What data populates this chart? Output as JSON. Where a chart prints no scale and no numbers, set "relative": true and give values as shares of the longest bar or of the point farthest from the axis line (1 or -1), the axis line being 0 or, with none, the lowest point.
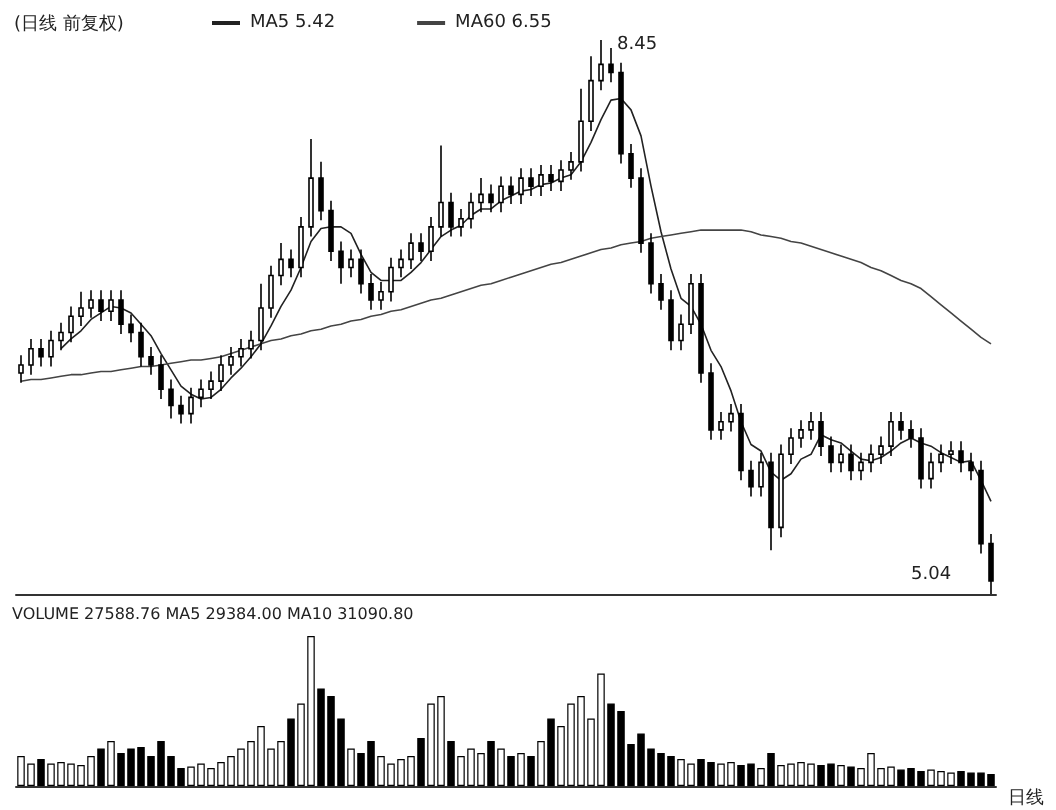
{
  "chart_data": [
    {
      "type": "candlestick",
      "title": "(日线 前复权)",
      "color": "#000000",
      "legend": "top left",
      "grid": false,
      "tick_labels": false,
      "categories": [
        null,
        null,
        null,
        null,
        null,
        null,
        null,
        null,
        null,
        null,
        null,
        null,
        null,
        null,
        null,
        null,
        null,
        null,
        null,
        null,
        null,
        null,
        null,
        null,
        null,
        null,
        null,
        null,
        null,
        null,
        null,
        null,
        null,
        null,
        null,
        null,
        null,
        null,
        null,
        null,
        null,
        null,
        null,
        null,
        null,
        null,
        null,
        null,
        null,
        null,
        null,
        null,
        null,
        null,
        null,
        null,
        null,
        null,
        null,
        null,
        null,
        null,
        null,
        null,
        null,
        null,
        null,
        null,
        null,
        null,
        null,
        null,
        null,
        null,
        null,
        null,
        null,
        null,
        null,
        null,
        null,
        null,
        null,
        null,
        null,
        null,
        null,
        null,
        null,
        null,
        null,
        null,
        null,
        null,
        null,
        null,
        null,
        null
      ],
      "ohlc": [
        [
          6.4,
          6.51,
          6.34,
          6.45
        ],
        [
          6.45,
          6.61,
          6.39,
          6.55
        ],
        [
          6.55,
          6.61,
          6.44,
          6.5
        ],
        [
          6.5,
          6.66,
          6.44,
          6.6
        ],
        [
          6.6,
          6.71,
          6.54,
          6.65
        ],
        [
          6.65,
          6.81,
          6.59,
          6.75
        ],
        [
          6.75,
          6.9,
          6.69,
          6.8
        ],
        [
          6.8,
          6.91,
          6.74,
          6.85
        ],
        [
          6.85,
          6.91,
          6.72,
          6.78
        ],
        [
          6.78,
          6.91,
          6.72,
          6.85
        ],
        [
          6.85,
          6.91,
          6.64,
          6.7
        ],
        [
          6.7,
          6.76,
          6.59,
          6.65
        ],
        [
          6.65,
          6.71,
          6.44,
          6.5
        ],
        [
          6.5,
          6.56,
          6.39,
          6.45
        ],
        [
          6.45,
          6.51,
          6.24,
          6.3
        ],
        [
          6.3,
          6.36,
          6.12,
          6.2
        ],
        [
          6.2,
          6.26,
          6.09,
          6.15
        ],
        [
          6.15,
          6.31,
          6.09,
          6.25
        ],
        [
          6.25,
          6.36,
          6.19,
          6.3
        ],
        [
          6.3,
          6.41,
          6.24,
          6.35
        ],
        [
          6.35,
          6.51,
          6.29,
          6.45
        ],
        [
          6.45,
          6.56,
          6.39,
          6.5
        ],
        [
          6.5,
          6.61,
          6.44,
          6.55
        ],
        [
          6.55,
          6.66,
          6.49,
          6.6
        ],
        [
          6.6,
          6.95,
          6.54,
          6.8
        ],
        [
          6.8,
          7.06,
          6.74,
          7.0
        ],
        [
          7.0,
          7.2,
          6.94,
          7.1
        ],
        [
          7.1,
          7.16,
          6.99,
          7.05
        ],
        [
          7.05,
          7.36,
          6.99,
          7.3
        ],
        [
          7.3,
          7.84,
          7.24,
          7.6
        ],
        [
          7.6,
          7.7,
          7.34,
          7.4
        ],
        [
          7.4,
          7.46,
          7.09,
          7.15
        ],
        [
          7.15,
          7.21,
          6.95,
          7.05
        ],
        [
          7.05,
          7.16,
          6.99,
          7.1
        ],
        [
          7.1,
          7.16,
          6.89,
          6.95
        ],
        [
          6.95,
          7.01,
          6.79,
          6.85
        ],
        [
          6.85,
          6.96,
          6.79,
          6.9
        ],
        [
          6.9,
          7.11,
          6.84,
          7.05
        ],
        [
          7.05,
          7.16,
          6.99,
          7.1
        ],
        [
          7.1,
          7.26,
          7.04,
          7.2
        ],
        [
          7.2,
          7.26,
          7.09,
          7.15
        ],
        [
          7.15,
          7.36,
          7.09,
          7.3
        ],
        [
          7.3,
          7.8,
          7.24,
          7.45
        ],
        [
          7.45,
          7.51,
          7.24,
          7.3
        ],
        [
          7.3,
          7.41,
          7.24,
          7.35
        ],
        [
          7.35,
          7.51,
          7.29,
          7.45
        ],
        [
          7.45,
          7.6,
          7.39,
          7.5
        ],
        [
          7.5,
          7.56,
          7.39,
          7.45
        ],
        [
          7.45,
          7.61,
          7.39,
          7.55
        ],
        [
          7.55,
          7.61,
          7.44,
          7.5
        ],
        [
          7.5,
          7.66,
          7.44,
          7.6
        ],
        [
          7.6,
          7.66,
          7.49,
          7.55
        ],
        [
          7.55,
          7.68,
          7.49,
          7.62
        ],
        [
          7.62,
          7.68,
          7.52,
          7.58
        ],
        [
          7.58,
          7.71,
          7.52,
          7.65
        ],
        [
          7.65,
          7.76,
          7.59,
          7.7
        ],
        [
          7.7,
          8.15,
          7.64,
          7.95
        ],
        [
          7.95,
          8.35,
          7.89,
          8.2
        ],
        [
          8.2,
          8.45,
          8.14,
          8.3
        ],
        [
          8.3,
          8.4,
          8.19,
          8.25
        ],
        [
          8.25,
          8.31,
          7.69,
          7.75
        ],
        [
          7.75,
          7.81,
          7.54,
          7.6
        ],
        [
          7.6,
          7.66,
          7.14,
          7.2
        ],
        [
          7.2,
          7.26,
          6.89,
          6.95
        ],
        [
          6.95,
          7.01,
          6.79,
          6.85
        ],
        [
          6.85,
          6.91,
          6.54,
          6.6
        ],
        [
          6.6,
          6.76,
          6.54,
          6.7
        ],
        [
          6.7,
          7.01,
          6.64,
          6.95
        ],
        [
          6.95,
          7.01,
          6.34,
          6.4
        ],
        [
          6.4,
          6.46,
          5.99,
          6.05
        ],
        [
          6.05,
          6.16,
          5.99,
          6.1
        ],
        [
          6.1,
          6.21,
          6.04,
          6.15
        ],
        [
          6.15,
          6.21,
          5.74,
          5.8
        ],
        [
          5.8,
          5.86,
          5.64,
          5.7
        ],
        [
          5.7,
          5.91,
          5.64,
          5.85
        ],
        [
          5.85,
          5.91,
          5.31,
          5.45
        ],
        [
          5.45,
          5.96,
          5.39,
          5.9
        ],
        [
          5.9,
          6.06,
          5.84,
          6.0
        ],
        [
          6.0,
          6.11,
          5.94,
          6.05
        ],
        [
          6.05,
          6.16,
          5.99,
          6.1
        ],
        [
          6.1,
          6.16,
          5.89,
          5.95
        ],
        [
          5.95,
          6.01,
          5.79,
          5.85
        ],
        [
          5.85,
          5.96,
          5.79,
          5.9
        ],
        [
          5.9,
          5.96,
          5.74,
          5.8
        ],
        [
          5.8,
          5.91,
          5.74,
          5.85
        ],
        [
          5.85,
          5.96,
          5.79,
          5.9
        ],
        [
          5.9,
          6.01,
          5.84,
          5.95
        ],
        [
          5.95,
          6.16,
          5.89,
          6.1
        ],
        [
          6.1,
          6.16,
          5.99,
          6.05
        ],
        [
          6.05,
          6.11,
          5.94,
          6.0
        ],
        [
          6.0,
          6.06,
          5.69,
          5.75
        ],
        [
          5.75,
          5.91,
          5.69,
          5.85
        ],
        [
          5.85,
          5.96,
          5.79,
          5.9
        ],
        [
          5.9,
          5.98,
          5.84,
          5.92
        ],
        [
          5.92,
          5.98,
          5.79,
          5.85
        ],
        [
          5.85,
          5.91,
          5.74,
          5.8
        ],
        [
          5.8,
          5.86,
          5.29,
          5.35
        ],
        [
          5.35,
          5.41,
          5.04,
          5.12
        ]
      ],
      "series": [
        {
          "type": "line",
          "name": "MA5 5.42",
          "color": "#222222",
          "values": [
            null,
            null,
            null,
            null,
            6.55,
            6.61,
            6.66,
            6.73,
            6.77,
            6.81,
            6.8,
            6.77,
            6.7,
            6.63,
            6.52,
            6.42,
            6.32,
            6.27,
            6.24,
            6.25,
            6.3,
            6.37,
            6.43,
            6.5,
            6.58,
            6.69,
            6.81,
            6.91,
            7.05,
            7.21,
            7.29,
            7.3,
            7.3,
            7.26,
            7.13,
            7.02,
            6.97,
            6.97,
            6.97,
            7.02,
            7.08,
            7.16,
            7.24,
            7.28,
            7.31,
            7.37,
            7.41,
            7.41,
            7.46,
            7.49,
            7.52,
            7.53,
            7.56,
            7.57,
            7.6,
            7.62,
            7.7,
            7.82,
            7.96,
            8.08,
            8.09,
            8.02,
            7.86,
            7.55,
            7.27,
            7.04,
            6.86,
            6.81,
            6.7,
            6.54,
            6.44,
            6.29,
            6.1,
            5.96,
            5.92,
            5.79,
            5.74,
            5.78,
            5.87,
            5.9,
            6.02,
            5.99,
            5.97,
            5.92,
            5.87,
            5.86,
            5.88,
            5.92,
            5.97,
            6.0,
            5.97,
            5.95,
            5.91,
            5.88,
            5.85,
            5.86,
            5.74,
            5.61
          ]
        },
        {
          "type": "line",
          "name": "MA60 6.55",
          "color": "#444444",
          "values": [
            6.35,
            6.36,
            6.36,
            6.37,
            6.38,
            6.39,
            6.39,
            6.4,
            6.41,
            6.41,
            6.42,
            6.43,
            6.44,
            6.44,
            6.45,
            6.46,
            6.47,
            6.48,
            6.48,
            6.49,
            6.5,
            6.52,
            6.54,
            6.56,
            6.58,
            6.6,
            6.61,
            6.63,
            6.64,
            6.66,
            6.67,
            6.69,
            6.7,
            6.72,
            6.73,
            6.75,
            6.76,
            6.78,
            6.79,
            6.81,
            6.83,
            6.85,
            6.86,
            6.88,
            6.9,
            6.92,
            6.94,
            6.95,
            6.97,
            6.99,
            7.01,
            7.03,
            7.05,
            7.07,
            7.08,
            7.1,
            7.12,
            7.14,
            7.16,
            7.17,
            7.19,
            7.2,
            7.21,
            7.23,
            7.24,
            7.25,
            7.26,
            7.27,
            7.28,
            7.28,
            7.28,
            7.28,
            7.28,
            7.27,
            7.25,
            7.24,
            7.23,
            7.21,
            7.2,
            7.18,
            7.16,
            7.14,
            7.12,
            7.1,
            7.08,
            7.05,
            7.03,
            7.0,
            6.97,
            6.95,
            6.92,
            6.87,
            6.82,
            6.77,
            6.72,
            6.67,
            6.62,
            6.58
          ]
        }
      ],
      "annotations": [
        "8.45",
        "5.04"
      ]
    },
    {
      "type": "bar",
      "relative": true,
      "tick_labels": false,
      "categories": [
        null,
        null,
        null,
        null,
        null,
        null,
        null,
        null,
        null,
        null,
        null,
        null,
        null,
        null,
        null,
        null,
        null,
        null,
        null,
        null,
        null,
        null,
        null,
        null,
        null,
        null,
        null,
        null,
        null,
        null,
        null,
        null,
        null,
        null,
        null,
        null,
        null,
        null,
        null,
        null,
        null,
        null,
        null,
        null,
        null,
        null,
        null,
        null,
        null,
        null,
        null,
        null,
        null,
        null,
        null,
        null,
        null,
        null,
        null,
        null,
        null,
        null,
        null,
        null,
        null,
        null,
        null,
        null,
        null,
        null,
        null,
        null,
        null,
        null,
        null,
        null,
        null,
        null,
        null,
        null,
        null,
        null,
        null,
        null,
        null,
        null,
        null,
        null,
        null,
        null,
        null,
        null,
        null,
        null,
        null,
        null,
        null,
        null
      ],
      "values": [
        0.2,
        0.15,
        0.18,
        0.15,
        0.16,
        0.15,
        0.14,
        0.2,
        0.25,
        0.3,
        0.22,
        0.25,
        0.26,
        0.2,
        0.3,
        0.2,
        0.12,
        0.13,
        0.15,
        0.12,
        0.16,
        0.2,
        0.25,
        0.3,
        0.4,
        0.25,
        0.3,
        0.45,
        0.55,
        1,
        0.65,
        0.6,
        0.45,
        0.25,
        0.22,
        0.3,
        0.2,
        0.15,
        0.18,
        0.2,
        0.32,
        0.55,
        0.6,
        0.3,
        0.2,
        0.25,
        0.22,
        0.3,
        0.25,
        0.2,
        0.22,
        0.2,
        0.3,
        0.45,
        0.4,
        0.55,
        0.6,
        0.45,
        0.75,
        0.55,
        0.5,
        0.28,
        0.35,
        0.25,
        0.22,
        0.2,
        0.18,
        0.15,
        0.18,
        0.16,
        0.15,
        0.16,
        0.14,
        0.15,
        0.12,
        0.22,
        0.14,
        0.15,
        0.16,
        0.15,
        0.14,
        0.15,
        0.14,
        0.13,
        0.12,
        0.22,
        0.12,
        0.13,
        0.11,
        0.12,
        0.1,
        0.11,
        0.1,
        0.09,
        0.1,
        0.09,
        0.09,
        0.08
      ],
      "colors": [
        "#ffffff",
        "#ffffff",
        "#000000",
        "#ffffff",
        "#ffffff",
        "#ffffff",
        "#ffffff",
        "#ffffff",
        "#000000",
        "#ffffff",
        "#000000",
        "#000000",
        "#000000",
        "#000000",
        "#000000",
        "#000000",
        "#000000",
        "#ffffff",
        "#ffffff",
        "#ffffff",
        "#ffffff",
        "#ffffff",
        "#ffffff",
        "#ffffff",
        "#ffffff",
        "#ffffff",
        "#ffffff",
        "#000000",
        "#ffffff",
        "#ffffff",
        "#000000",
        "#000000",
        "#000000",
        "#ffffff",
        "#000000",
        "#000000",
        "#ffffff",
        "#ffffff",
        "#ffffff",
        "#ffffff",
        "#000000",
        "#ffffff",
        "#ffffff",
        "#000000",
        "#ffffff",
        "#ffffff",
        "#ffffff",
        "#000000",
        "#ffffff",
        "#000000",
        "#ffffff",
        "#000000",
        "#ffffff",
        "#000000",
        "#ffffff",
        "#ffffff",
        "#ffffff",
        "#ffffff",
        "#ffffff",
        "#000000",
        "#000000",
        "#000000",
        "#000000",
        "#000000",
        "#000000",
        "#000000",
        "#ffffff",
        "#ffffff",
        "#000000",
        "#000000",
        "#ffffff",
        "#ffffff",
        "#000000",
        "#000000",
        "#ffffff",
        "#000000",
        "#ffffff",
        "#ffffff",
        "#ffffff",
        "#ffffff",
        "#000000",
        "#000000",
        "#ffffff",
        "#000000",
        "#ffffff",
        "#ffffff",
        "#ffffff",
        "#ffffff",
        "#000000",
        "#000000",
        "#000000",
        "#ffffff",
        "#ffffff",
        "#ffffff",
        "#000000",
        "#000000",
        "#000000",
        "#000000"
      ],
      "annotations": [
        "VOLUME 27588.76 MA5 29384.00 MA10 31090.80",
        "日线"
      ]
    }
  ]
}
